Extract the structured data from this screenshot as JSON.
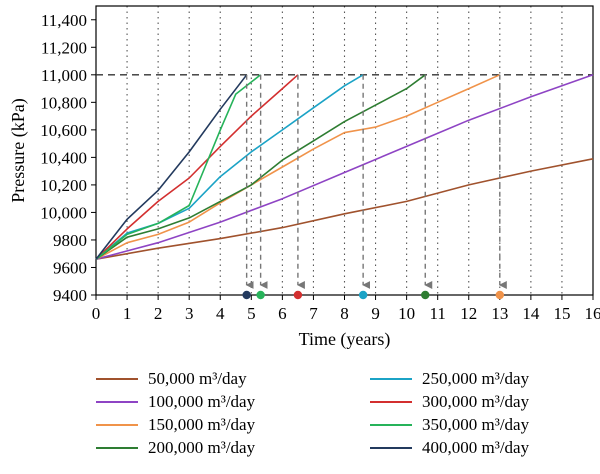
{
  "chart_data": {
    "type": "line",
    "xlabel": "Time (years)",
    "ylabel": "Pressure (kPa)",
    "xlim": [
      0,
      16
    ],
    "ylim": [
      9400,
      11500
    ],
    "x_ticks": [
      "0",
      "1",
      "2",
      "3",
      "4",
      "5",
      "6",
      "7",
      "8",
      "9",
      "10",
      "11",
      "12",
      "13",
      "14",
      "15",
      "16"
    ],
    "y_ticks": [
      {
        "value": 9400,
        "label": "9400"
      },
      {
        "value": 9600,
        "label": "9600"
      },
      {
        "value": 9800,
        "label": "9800"
      },
      {
        "value": 10000,
        "label": "10,000"
      },
      {
        "value": 10200,
        "label": "10,200"
      },
      {
        "value": 10400,
        "label": "10,400"
      },
      {
        "value": 10600,
        "label": "10,600"
      },
      {
        "value": 10800,
        "label": "10,800"
      },
      {
        "value": 11000,
        "label": "11,000"
      },
      {
        "value": 11200,
        "label": "11,200"
      },
      {
        "value": 11400,
        "label": "11,400"
      }
    ],
    "grid": {
      "vertical": "dotted",
      "horizontal": false
    },
    "threshold": {
      "y": 11000,
      "style": "dashed"
    },
    "legend_position": "bottom",
    "series": [
      {
        "name": "50,000 m³/day",
        "color": "#a0522d",
        "x": [
          0,
          2,
          4,
          6,
          8,
          10,
          12,
          14,
          16
        ],
        "y": [
          9660,
          9740,
          9810,
          9890,
          9990,
          10080,
          10200,
          10300,
          10390
        ]
      },
      {
        "name": "100,000 m³/day",
        "color": "#8e44c4",
        "x": [
          0,
          2,
          4,
          6,
          8,
          10,
          12,
          14,
          16
        ],
        "y": [
          9660,
          9780,
          9930,
          10100,
          10290,
          10480,
          10670,
          10840,
          11000
        ]
      },
      {
        "name": "150,000 m³/day",
        "color": "#f0934a",
        "x": [
          0,
          1,
          2,
          3,
          4,
          5,
          6,
          7,
          8,
          9,
          10,
          11,
          12,
          13
        ],
        "y": [
          9660,
          9780,
          9840,
          9930,
          10070,
          10200,
          10330,
          10460,
          10580,
          10620,
          10700,
          10800,
          10900,
          11000
        ]
      },
      {
        "name": "200,000 m³/day",
        "color": "#2e7d32",
        "x": [
          0,
          1,
          2,
          3,
          4,
          5,
          6,
          7,
          8,
          9,
          10,
          10.6
        ],
        "y": [
          9660,
          9820,
          9880,
          9960,
          10080,
          10200,
          10380,
          10520,
          10660,
          10780,
          10900,
          11000
        ]
      },
      {
        "name": "250,000 m³/day",
        "color": "#1ba3c6",
        "x": [
          0,
          1,
          2,
          3,
          4,
          5,
          6,
          7,
          8,
          8.6
        ],
        "y": [
          9660,
          9850,
          9920,
          10030,
          10260,
          10440,
          10600,
          10760,
          10920,
          11000
        ]
      },
      {
        "name": "300,000 m³/day",
        "color": "#d32f2f",
        "x": [
          0,
          1,
          2,
          3,
          4,
          5,
          6,
          6.5
        ],
        "y": [
          9660,
          9880,
          10080,
          10250,
          10480,
          10700,
          10900,
          11000
        ]
      },
      {
        "name": "350,000 m³/day",
        "color": "#26b35a",
        "x": [
          0,
          1,
          2,
          3,
          4,
          4.5,
          5.3
        ],
        "y": [
          9660,
          9840,
          9920,
          10050,
          10600,
          10860,
          11000
        ]
      },
      {
        "name": "400,000 m³/day",
        "color": "#233a5e",
        "x": [
          0,
          1,
          2,
          3,
          4,
          4.85
        ],
        "y": [
          9660,
          9950,
          10160,
          10440,
          10750,
          11000
        ]
      }
    ]
  }
}
